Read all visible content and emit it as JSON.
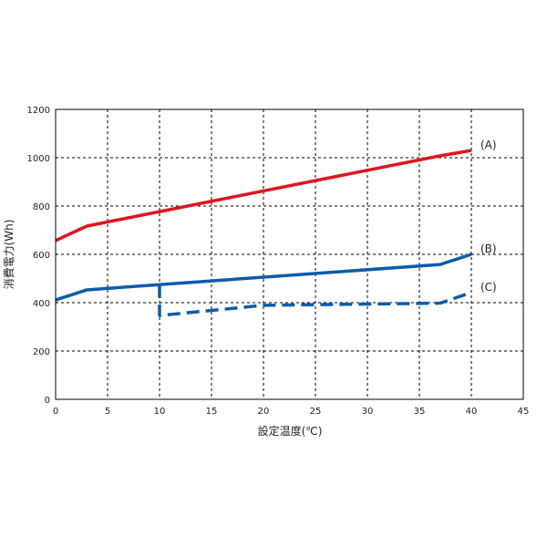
{
  "chart_data": {
    "type": "line",
    "title": "",
    "xlabel": "設定温度(℃)",
    "ylabel": "消費電力(Wh)",
    "xlim": [
      0,
      45
    ],
    "ylim": [
      0,
      1200
    ],
    "xticks": [
      0,
      5,
      10,
      15,
      20,
      25,
      30,
      35,
      40,
      45
    ],
    "yticks": [
      0,
      200,
      400,
      600,
      800,
      1000,
      1200
    ],
    "grid": true,
    "series": [
      {
        "name": "(A)",
        "color": "#e0141e",
        "style": "solid",
        "x": [
          0,
          3,
          37,
          40
        ],
        "y": [
          657,
          717,
          1008,
          1030
        ]
      },
      {
        "name": "(B)",
        "color": "#0b5bab",
        "style": "solid",
        "x": [
          0,
          3,
          37,
          40
        ],
        "y": [
          411,
          453,
          558,
          600
        ]
      },
      {
        "name": "(C)",
        "color": "#0b5bab",
        "style": "dashed",
        "x": [
          10,
          10,
          20,
          37,
          40
        ],
        "y": [
          472,
          347,
          389,
          398,
          442
        ]
      }
    ]
  }
}
